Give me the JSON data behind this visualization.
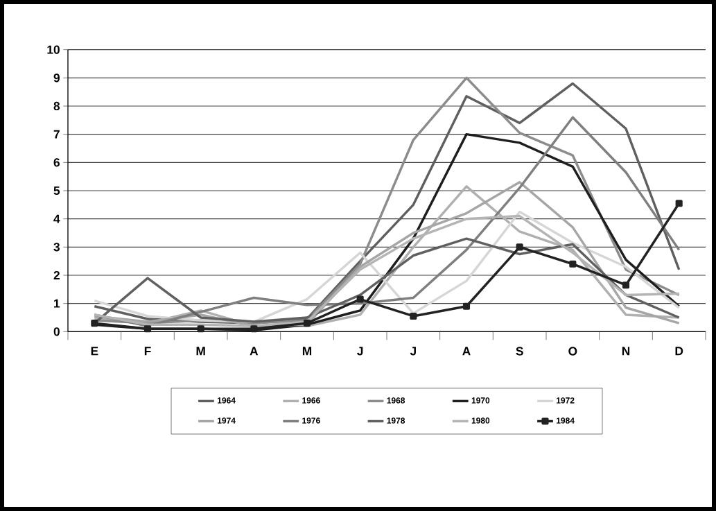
{
  "chart_data": {
    "type": "line",
    "categories": [
      "E",
      "F",
      "M",
      "A",
      "M",
      "J",
      "J",
      "A",
      "S",
      "O",
      "N",
      "D"
    ],
    "ylim": [
      0,
      10
    ],
    "yticks": [
      0,
      1,
      2,
      3,
      4,
      5,
      6,
      7,
      8,
      9,
      10
    ],
    "grid": "y",
    "legend": "bottom",
    "line_style": "solid",
    "series": [
      {
        "name": "1964",
        "color": "#5f5f5f",
        "values": [
          0.9,
          0.45,
          0.35,
          0.3,
          0.45,
          2.5,
          4.5,
          8.35,
          7.4,
          8.8,
          7.2,
          2.2
        ]
      },
      {
        "name": "1966",
        "color": "#b0b0b0",
        "values": [
          0.5,
          0.3,
          0.75,
          0.2,
          0.2,
          0.6,
          3.0,
          5.15,
          3.55,
          2.9,
          0.6,
          0.5
        ]
      },
      {
        "name": "1968",
        "color": "#8c8c8c",
        "values": [
          0.4,
          0.3,
          0.4,
          0.3,
          0.4,
          2.4,
          6.8,
          9.0,
          7.05,
          6.25,
          2.2,
          1.3
        ]
      },
      {
        "name": "1970",
        "color": "#1e1e1e",
        "values": [
          0.25,
          0.1,
          0.1,
          0.05,
          0.25,
          0.75,
          3.3,
          7.0,
          6.7,
          5.85,
          2.55,
          0.9
        ]
      },
      {
        "name": "1972",
        "color": "#d6d6d6",
        "values": [
          1.1,
          0.55,
          0.4,
          0.35,
          1.15,
          2.8,
          0.65,
          1.8,
          4.25,
          3.15,
          2.3,
          0.85
        ]
      },
      {
        "name": "1974",
        "color": "#a6a6a6",
        "values": [
          0.55,
          0.35,
          0.6,
          0.2,
          0.25,
          2.3,
          3.5,
          4.2,
          5.3,
          3.7,
          0.85,
          0.3
        ]
      },
      {
        "name": "1976",
        "color": "#7f7f7f",
        "values": [
          0.6,
          0.2,
          0.7,
          1.2,
          0.95,
          1.0,
          1.2,
          2.9,
          5.1,
          7.6,
          5.65,
          2.9
        ]
      },
      {
        "name": "1978",
        "color": "#606060",
        "values": [
          0.3,
          1.9,
          0.5,
          0.35,
          0.5,
          1.3,
          2.7,
          3.3,
          2.75,
          3.1,
          1.3,
          0.5
        ]
      },
      {
        "name": "1980",
        "color": "#b4b4b4",
        "values": [
          0.6,
          0.25,
          0.25,
          0.2,
          0.35,
          2.2,
          3.3,
          4.0,
          4.1,
          2.8,
          1.3,
          1.35
        ]
      },
      {
        "name": "1984",
        "color": "#222222",
        "marker": "square",
        "values": [
          0.3,
          0.1,
          0.1,
          0.1,
          0.3,
          1.15,
          0.55,
          0.9,
          3.0,
          2.4,
          1.65,
          4.55
        ]
      }
    ]
  }
}
